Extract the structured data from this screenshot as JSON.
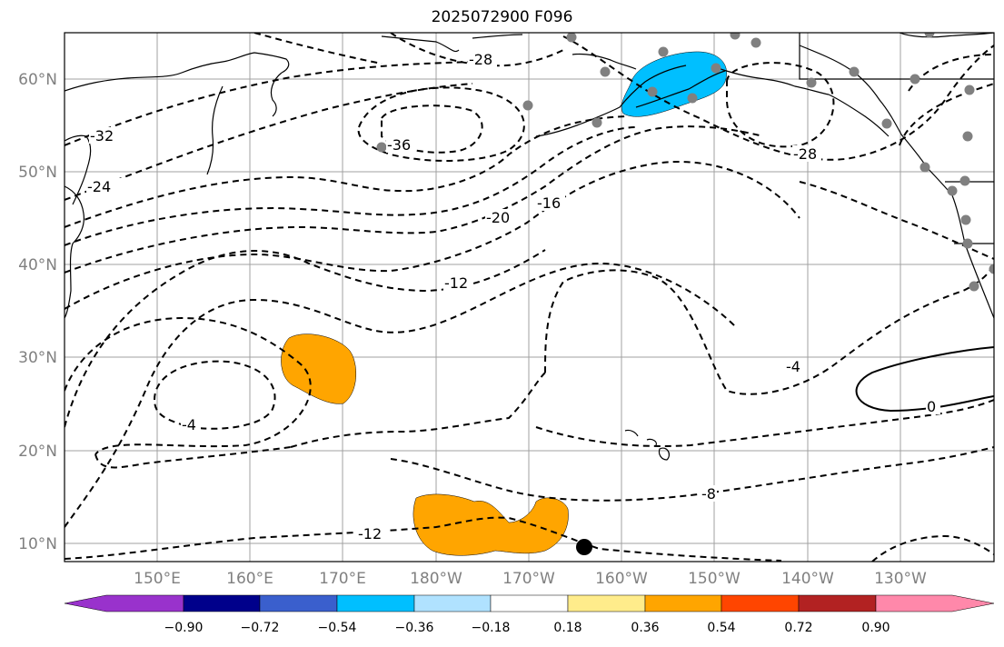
{
  "title": "2025072900 F096",
  "map": {
    "lat_labels": [
      "60°N",
      "50°N",
      "40°N",
      "30°N",
      "20°N",
      "10°N"
    ],
    "lon_labels": [
      "150°E",
      "160°E",
      "170°E",
      "180°W",
      "170°W",
      "160°W",
      "150°W",
      "140°W",
      "130°W"
    ]
  },
  "contour_labels": [
    "-32",
    "-28",
    "-36",
    "-24",
    "-28",
    "-20",
    "-16",
    "-12",
    "-4",
    "-4",
    "0",
    "-8",
    "-12"
  ],
  "colorbar": {
    "ticks": [
      "−0.90",
      "−0.72",
      "−0.54",
      "−0.36",
      "−0.18",
      "0.18",
      "0.36",
      "0.54",
      "0.72",
      "0.90"
    ],
    "colors": [
      "#9932cc",
      "#00008b",
      "#3a5fcd",
      "#00bfff",
      "#b0e2ff",
      "#ffffff",
      "#ffec8b",
      "#ffa500",
      "#ff4500",
      "#b22222",
      "#ff88aa"
    ]
  },
  "colors": {
    "anomaly_negative": "#00bfff",
    "anomaly_positive": "#ffa500",
    "station_dots": "#808080",
    "marker": "#000000"
  }
}
